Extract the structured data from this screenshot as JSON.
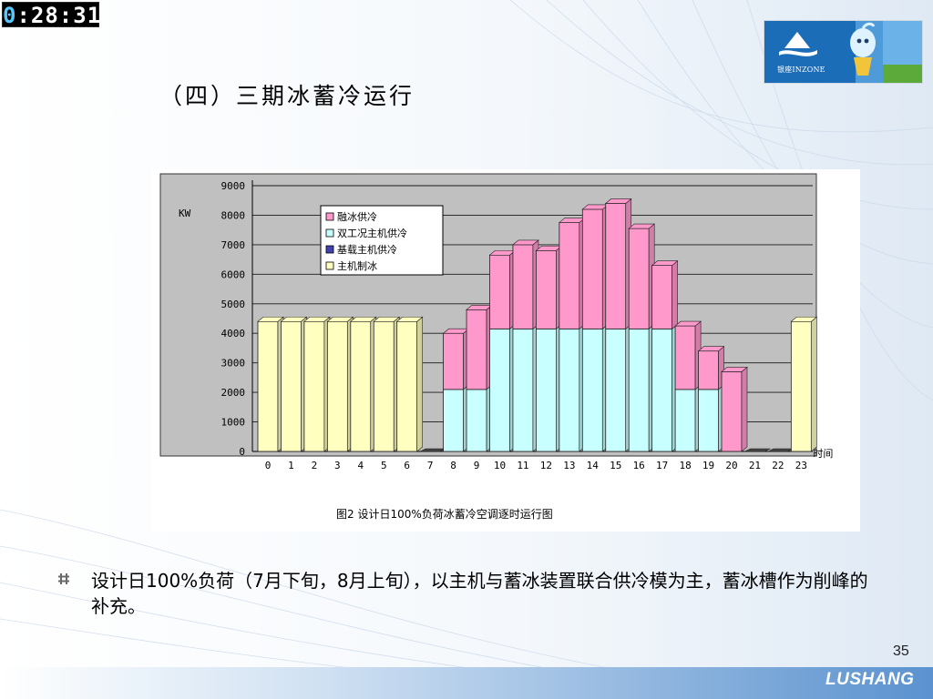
{
  "timer": {
    "first": "0",
    "rest": ":28:31"
  },
  "logo": {
    "text": "银座INZONE"
  },
  "title": "（四）三期冰蓄冷运行",
  "chart_data": {
    "type": "bar",
    "stacked": true,
    "ylabel": "KW",
    "xlabel": "时间",
    "caption": "图2 设计日100%负荷冰蓄冷空调逐时运行图",
    "ylim": [
      0,
      9000
    ],
    "yticks": [
      0,
      1000,
      2000,
      3000,
      4000,
      5000,
      6000,
      7000,
      8000,
      9000
    ],
    "categories": [
      "0",
      "1",
      "2",
      "3",
      "4",
      "5",
      "6",
      "7",
      "8",
      "9",
      "10",
      "11",
      "12",
      "13",
      "14",
      "15",
      "16",
      "17",
      "18",
      "19",
      "20",
      "21",
      "22",
      "23"
    ],
    "series": [
      {
        "name": "主机制冰",
        "color": "#ffffc0",
        "values": [
          4400,
          4400,
          4400,
          4400,
          4400,
          4400,
          4400,
          0,
          0,
          0,
          0,
          0,
          0,
          0,
          0,
          0,
          0,
          0,
          0,
          0,
          0,
          0,
          0,
          4400
        ]
      },
      {
        "name": "基载主机供冷",
        "color": "#4040b0",
        "values": [
          0,
          0,
          0,
          0,
          0,
          0,
          0,
          0,
          0,
          0,
          0,
          0,
          0,
          0,
          0,
          0,
          0,
          0,
          0,
          0,
          0,
          0,
          0,
          0
        ]
      },
      {
        "name": "双工况主机供冷",
        "color": "#c8ffff",
        "values": [
          0,
          0,
          0,
          0,
          0,
          0,
          0,
          0,
          2100,
          2100,
          4150,
          4150,
          4150,
          4150,
          4150,
          4150,
          4150,
          4150,
          2100,
          2100,
          0,
          0,
          0,
          0
        ]
      },
      {
        "name": "融冰供冷",
        "color": "#ff99cc",
        "values": [
          0,
          0,
          0,
          0,
          0,
          0,
          0,
          0,
          1900,
          2700,
          2500,
          2850,
          2650,
          3600,
          4050,
          4250,
          3400,
          2150,
          2150,
          1300,
          2700,
          0,
          0,
          0
        ]
      }
    ],
    "legend_position": "top-left",
    "grid": true
  },
  "bullet": {
    "text": "设计日100%负荷（7月下旬，8月上旬），以主机与蓄冰装置联合供冷模为主，蓄冰槽作为削峰的补充。"
  },
  "page_number": "35",
  "footer": {
    "brand": "LUSHANG"
  },
  "colors": {
    "frame_bg": "#c0c0c0",
    "title": "#000000"
  }
}
